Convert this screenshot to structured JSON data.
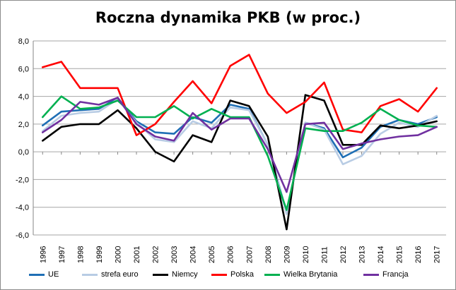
{
  "chart_data": {
    "type": "line",
    "title": "Roczna dynamika PKB (w proc.)",
    "xlabel": "",
    "ylabel": "",
    "ylim": [
      -6,
      8
    ],
    "yticks": [
      "8,0",
      "6,0",
      "4,0",
      "2,0",
      "0,0",
      "-2,0",
      "-4,0",
      "-6,0"
    ],
    "grid": true,
    "legend_position": "bottom",
    "categories": [
      "1996",
      "1997",
      "1998",
      "1999",
      "2000",
      "2001",
      "2002",
      "2003",
      "2004",
      "2005",
      "2006",
      "2007",
      "2008",
      "2009",
      "2010",
      "2011",
      "2012",
      "2013",
      "2014",
      "2015",
      "2016",
      "2017"
    ],
    "series": [
      {
        "name": "UE",
        "color": "#1f6fb5",
        "values": [
          1.9,
          2.9,
          3.0,
          3.1,
          3.9,
          2.2,
          1.4,
          1.3,
          2.5,
          2.1,
          3.4,
          3.1,
          0.5,
          -4.4,
          2.1,
          1.7,
          -0.4,
          0.3,
          1.8,
          2.3,
          2.0,
          2.5
        ]
      },
      {
        "name": "strefa euro",
        "color": "#b8cce4",
        "values": [
          1.5,
          2.6,
          2.8,
          2.9,
          3.8,
          2.1,
          0.9,
          0.7,
          2.2,
          1.7,
          3.2,
          3.0,
          0.5,
          -4.5,
          2.1,
          1.6,
          -0.9,
          -0.3,
          1.3,
          2.1,
          1.8,
          2.6
        ]
      },
      {
        "name": "Niemcy",
        "color": "#000000",
        "values": [
          0.8,
          1.8,
          2.0,
          2.0,
          3.0,
          1.7,
          0.0,
          -0.7,
          1.2,
          0.7,
          3.7,
          3.3,
          1.1,
          -5.6,
          4.1,
          3.7,
          0.5,
          0.5,
          1.9,
          1.7,
          1.9,
          2.2
        ]
      },
      {
        "name": "Polska",
        "color": "#ff0000",
        "values": [
          6.1,
          6.5,
          4.6,
          4.6,
          4.6,
          1.2,
          2.0,
          3.6,
          5.1,
          3.5,
          6.2,
          7.0,
          4.2,
          2.8,
          3.6,
          5.0,
          1.6,
          1.4,
          3.3,
          3.8,
          2.9,
          4.6
        ]
      },
      {
        "name": "Wielka Brytania",
        "color": "#00b050",
        "values": [
          2.5,
          4.0,
          3.1,
          3.2,
          3.7,
          2.5,
          2.5,
          3.3,
          2.4,
          3.1,
          2.5,
          2.5,
          -0.3,
          -4.2,
          1.7,
          1.5,
          1.5,
          2.1,
          3.1,
          2.3,
          1.9,
          1.8
        ]
      },
      {
        "name": "Francja",
        "color": "#7030a0",
        "values": [
          1.4,
          2.3,
          3.6,
          3.4,
          3.9,
          2.0,
          1.1,
          0.8,
          2.8,
          1.6,
          2.4,
          2.4,
          0.2,
          -2.9,
          2.0,
          2.1,
          0.2,
          0.6,
          0.9,
          1.1,
          1.2,
          1.8
        ]
      }
    ]
  }
}
